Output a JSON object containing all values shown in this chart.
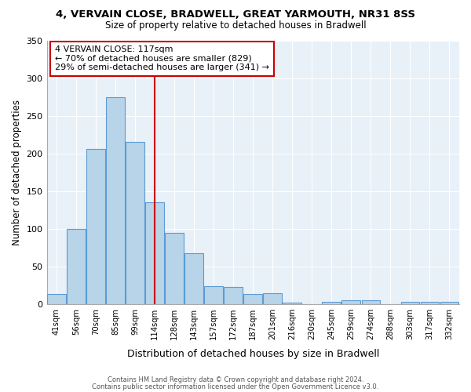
{
  "title": "4, VERVAIN CLOSE, BRADWELL, GREAT YARMOUTH, NR31 8SS",
  "subtitle": "Size of property relative to detached houses in Bradwell",
  "xlabel": "Distribution of detached houses by size in Bradwell",
  "ylabel": "Number of detached properties",
  "bar_labels": [
    "41sqm",
    "56sqm",
    "70sqm",
    "85sqm",
    "99sqm",
    "114sqm",
    "128sqm",
    "143sqm",
    "157sqm",
    "172sqm",
    "187sqm",
    "201sqm",
    "216sqm",
    "230sqm",
    "245sqm",
    "259sqm",
    "274sqm",
    "288sqm",
    "303sqm",
    "317sqm",
    "332sqm"
  ],
  "bar_values": [
    14,
    100,
    206,
    275,
    215,
    135,
    95,
    68,
    24,
    23,
    14,
    15,
    2,
    0,
    3,
    5,
    5,
    0,
    3,
    3,
    3
  ],
  "bar_color": "#b8d4e8",
  "bar_edge_color": "#5b9bd5",
  "highlight_color": "#cc0000",
  "vline_index": 5,
  "ylim": [
    0,
    350
  ],
  "yticks": [
    0,
    50,
    100,
    150,
    200,
    250,
    300,
    350
  ],
  "annotation_title": "4 VERVAIN CLOSE: 117sqm",
  "annotation_line1": "← 70% of detached houses are smaller (829)",
  "annotation_line2": "29% of semi-detached houses are larger (341) →",
  "footer1": "Contains HM Land Registry data © Crown copyright and database right 2024.",
  "footer2": "Contains public sector information licensed under the Open Government Licence v3.0.",
  "background_color": "#ffffff",
  "plot_bg_color": "#e8f0f8",
  "grid_color": "#ffffff"
}
